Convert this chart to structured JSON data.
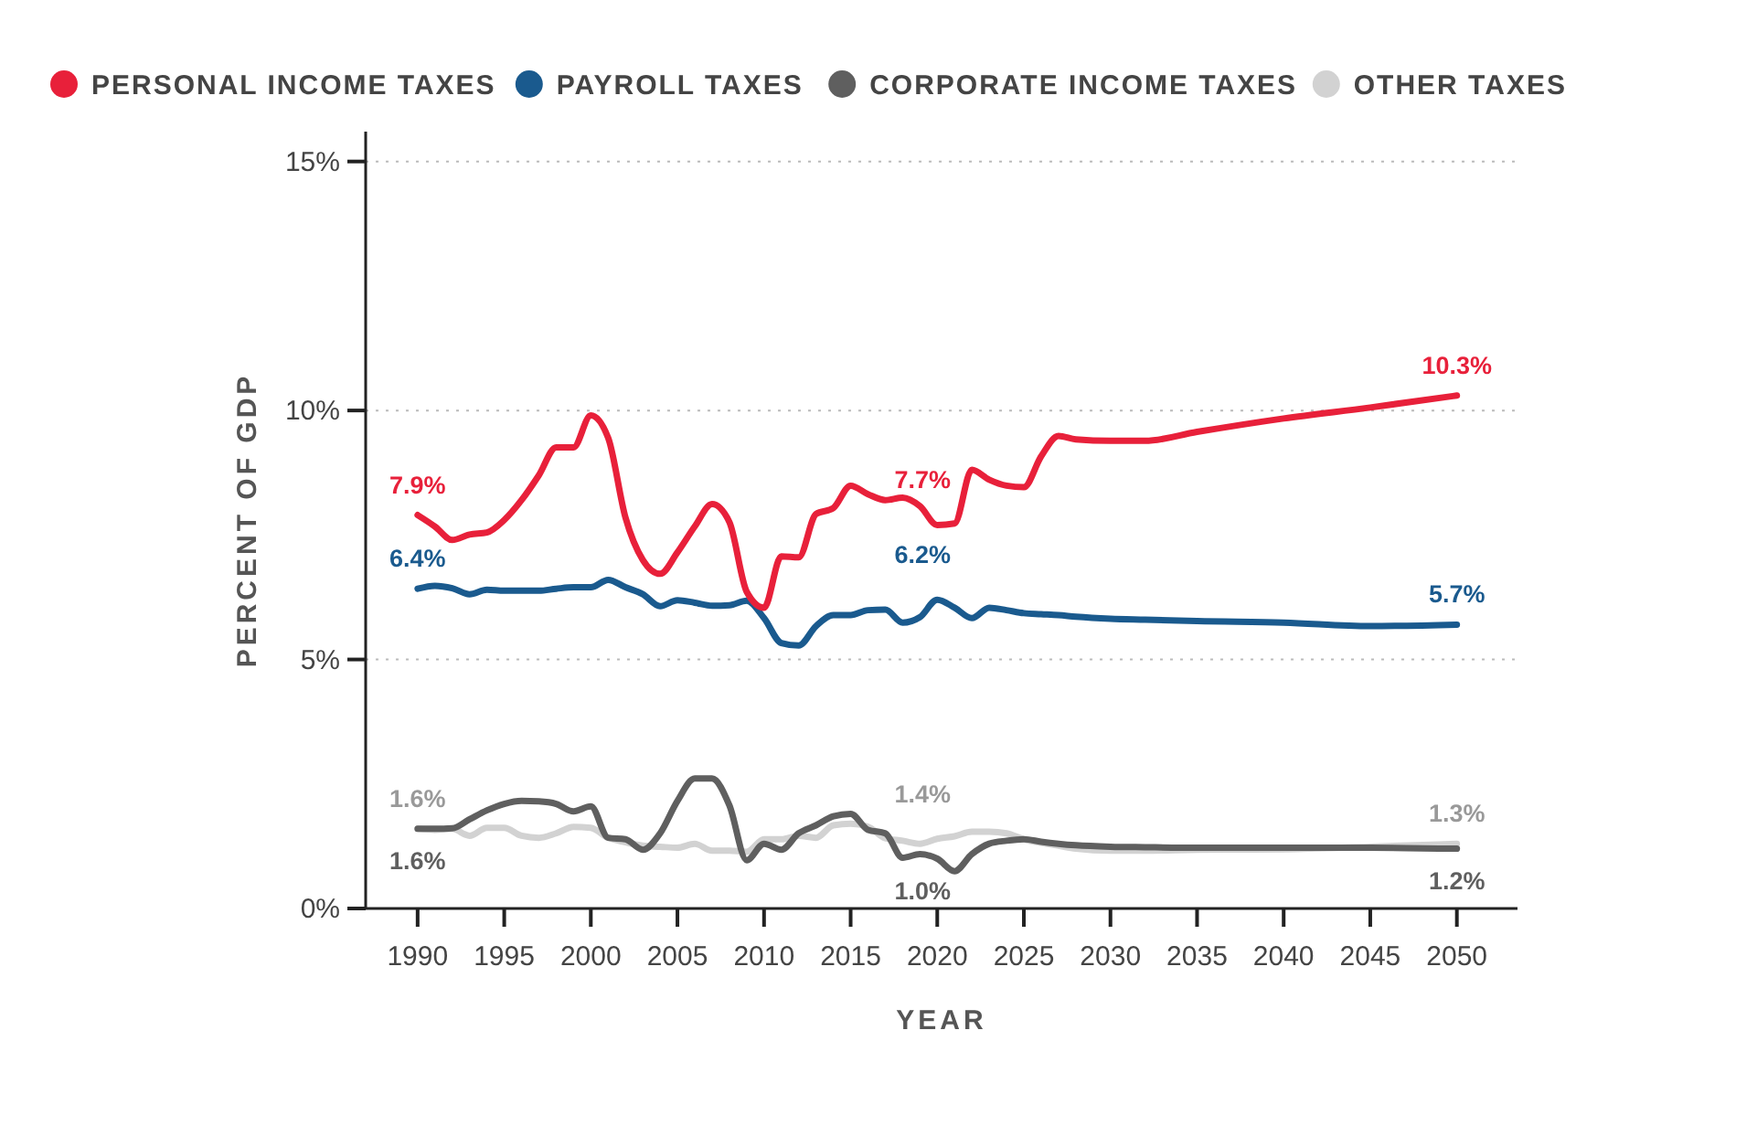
{
  "chart_data": {
    "type": "line",
    "xlabel": "YEAR",
    "ylabel": "PERCENT OF GDP",
    "xlim": [
      1987,
      2053.5
    ],
    "ylim": [
      0,
      15.6
    ],
    "xticks": [
      1990,
      1995,
      2000,
      2005,
      2010,
      2015,
      2020,
      2025,
      2030,
      2035,
      2040,
      2045,
      2050
    ],
    "yticks": [
      {
        "value": 0,
        "label": "0%"
      },
      {
        "value": 5,
        "label": "5%"
      },
      {
        "value": 10,
        "label": "10%"
      },
      {
        "value": 15,
        "label": "15%"
      }
    ],
    "grid": "y",
    "legend": "top",
    "marker": "none",
    "line_style": "solid",
    "x": [
      1990,
      1991,
      1992,
      1993,
      1994,
      1995,
      1996,
      1997,
      1998,
      1999,
      2000,
      2001,
      2002,
      2003,
      2004,
      2005,
      2006,
      2007,
      2008,
      2009,
      2010,
      2011,
      2012,
      2013,
      2014,
      2015,
      2016,
      2017,
      2018,
      2019,
      2020,
      2021,
      2022,
      2023,
      2024,
      2025,
      2026,
      2027,
      2028,
      2030,
      2032,
      2035,
      2040,
      2045,
      2050
    ],
    "series": [
      {
        "name": "PERSONAL INCOME TAXES",
        "color": "#e8203a",
        "values": [
          7.9,
          7.67,
          7.4,
          7.51,
          7.55,
          7.8,
          8.2,
          8.7,
          9.26,
          9.26,
          9.9,
          9.45,
          7.85,
          7.0,
          6.72,
          7.15,
          7.67,
          8.12,
          7.76,
          6.36,
          6.04,
          7.07,
          7.05,
          7.92,
          8.04,
          8.49,
          8.32,
          8.2,
          8.25,
          8.08,
          7.7,
          7.73,
          8.81,
          8.61,
          8.49,
          8.46,
          9.08,
          9.49,
          9.42,
          9.39,
          9.39,
          9.57,
          9.84,
          10.06,
          10.3
        ],
        "value_labels": [
          "7.9%",
          null,
          null,
          null,
          null,
          null,
          null,
          null,
          null,
          null,
          null,
          null,
          null,
          null,
          null,
          null,
          null,
          null,
          null,
          null,
          null,
          null,
          null,
          null,
          null,
          null,
          null,
          null,
          null,
          null,
          "7.7%",
          null,
          null,
          null,
          null,
          null,
          null,
          null,
          null,
          null,
          null,
          null,
          null,
          null,
          "10.3%"
        ]
      },
      {
        "name": "PAYROLL TAXES",
        "color": "#1a5a8e",
        "values": [
          6.42,
          6.48,
          6.43,
          6.31,
          6.4,
          6.38,
          6.38,
          6.38,
          6.42,
          6.45,
          6.45,
          6.6,
          6.45,
          6.31,
          6.07,
          6.19,
          6.14,
          6.08,
          6.09,
          6.18,
          5.83,
          5.33,
          5.28,
          5.67,
          5.89,
          5.89,
          5.99,
          6.0,
          5.74,
          5.85,
          6.2,
          6.04,
          5.83,
          6.04,
          5.99,
          5.93,
          5.91,
          5.89,
          5.86,
          5.82,
          5.8,
          5.77,
          5.74,
          5.67,
          5.7
        ],
        "value_labels": [
          "6.4%",
          null,
          null,
          null,
          null,
          null,
          null,
          null,
          null,
          null,
          null,
          null,
          null,
          null,
          null,
          null,
          null,
          null,
          null,
          null,
          null,
          null,
          null,
          null,
          null,
          null,
          null,
          null,
          null,
          null,
          "6.2%",
          null,
          null,
          null,
          null,
          null,
          null,
          null,
          null,
          null,
          null,
          null,
          null,
          null,
          "5.7%"
        ]
      },
      {
        "name": "CORPORATE INCOME TAXES",
        "color": "#5f5f5f",
        "values": [
          1.6,
          1.6,
          1.61,
          1.79,
          1.97,
          2.1,
          2.16,
          2.15,
          2.1,
          1.95,
          2.05,
          1.42,
          1.39,
          1.18,
          1.51,
          2.16,
          2.61,
          2.61,
          2.07,
          0.97,
          1.3,
          1.18,
          1.51,
          1.67,
          1.85,
          1.9,
          1.58,
          1.51,
          1.02,
          1.09,
          1.0,
          0.75,
          1.09,
          1.3,
          1.36,
          1.39,
          1.34,
          1.3,
          1.27,
          1.24,
          1.23,
          1.22,
          1.22,
          1.22,
          1.2
        ],
        "value_labels": [
          "1.6%",
          null,
          null,
          null,
          null,
          null,
          null,
          null,
          null,
          null,
          null,
          null,
          null,
          null,
          null,
          null,
          null,
          null,
          null,
          null,
          null,
          null,
          null,
          null,
          null,
          null,
          null,
          null,
          null,
          null,
          "1.0%",
          null,
          null,
          null,
          null,
          null,
          null,
          null,
          null,
          null,
          null,
          null,
          null,
          null,
          "1.2%"
        ]
      },
      {
        "name": "OTHER TAXES",
        "color": "#d2d2d2",
        "values": [
          1.6,
          1.58,
          1.6,
          1.46,
          1.62,
          1.62,
          1.46,
          1.42,
          1.51,
          1.64,
          1.62,
          1.42,
          1.33,
          1.26,
          1.24,
          1.22,
          1.3,
          1.16,
          1.16,
          1.14,
          1.39,
          1.39,
          1.46,
          1.42,
          1.67,
          1.7,
          1.64,
          1.41,
          1.36,
          1.3,
          1.4,
          1.45,
          1.54,
          1.54,
          1.51,
          1.39,
          1.32,
          1.26,
          1.2,
          1.16,
          1.16,
          1.18,
          1.19,
          1.24,
          1.3
        ],
        "value_labels": [
          "1.6%",
          null,
          null,
          null,
          null,
          null,
          null,
          null,
          null,
          null,
          null,
          null,
          null,
          null,
          null,
          null,
          null,
          null,
          null,
          null,
          null,
          null,
          null,
          null,
          null,
          null,
          null,
          null,
          null,
          null,
          "1.4%",
          null,
          null,
          null,
          null,
          null,
          null,
          null,
          null,
          null,
          null,
          null,
          null,
          null,
          "1.3%"
        ]
      }
    ]
  }
}
